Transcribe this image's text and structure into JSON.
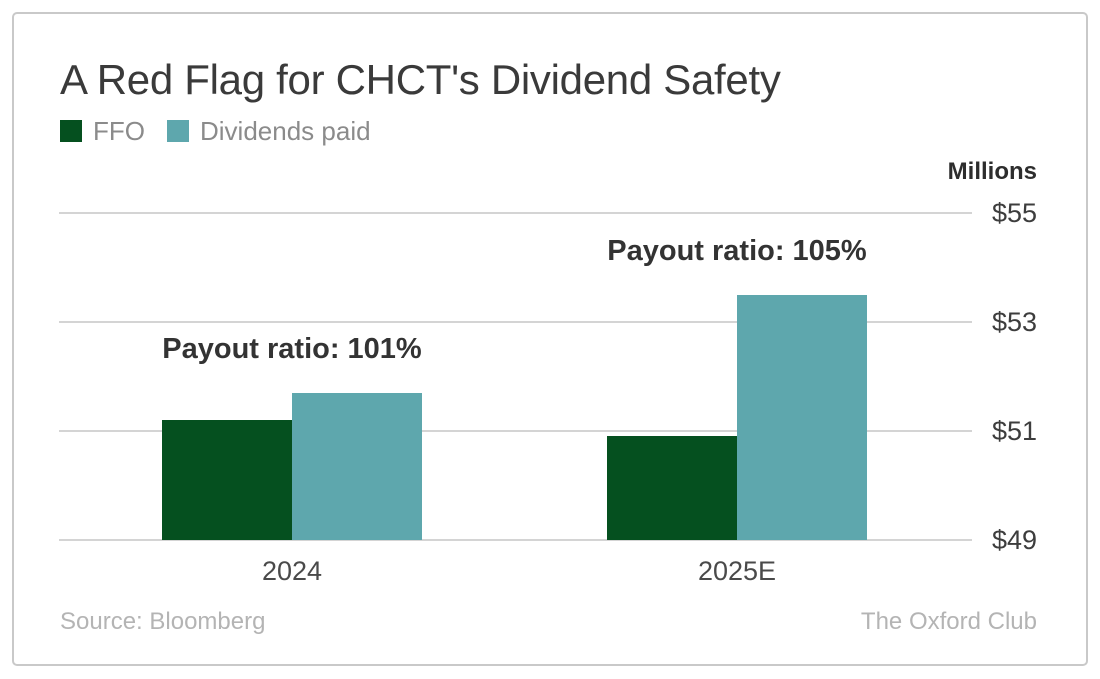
{
  "chart_data": {
    "type": "bar",
    "title": "A Red Flag for CHCT's Dividend Safety",
    "unit_label": "Millions",
    "categories": [
      "2024",
      "2025E"
    ],
    "series": [
      {
        "name": "FFO",
        "color": "#05501f",
        "values": [
          51.2,
          50.9
        ]
      },
      {
        "name": "Dividends paid",
        "color": "#5ea7ad",
        "values": [
          51.7,
          53.5
        ]
      }
    ],
    "annotations": [
      {
        "text": "Payout ratio: 101%",
        "category_index": 0
      },
      {
        "text": "Payout ratio: 105%",
        "category_index": 1
      }
    ],
    "ylim": [
      49,
      55
    ],
    "yticks": [
      {
        "value": 55,
        "label": "$55"
      },
      {
        "value": 53,
        "label": "$53"
      },
      {
        "value": 51,
        "label": "$51"
      },
      {
        "value": 49,
        "label": "$49"
      }
    ],
    "grid": true,
    "legend_position": "top-left",
    "source": "Source: Bloomberg",
    "attribution": "The Oxford Club"
  }
}
